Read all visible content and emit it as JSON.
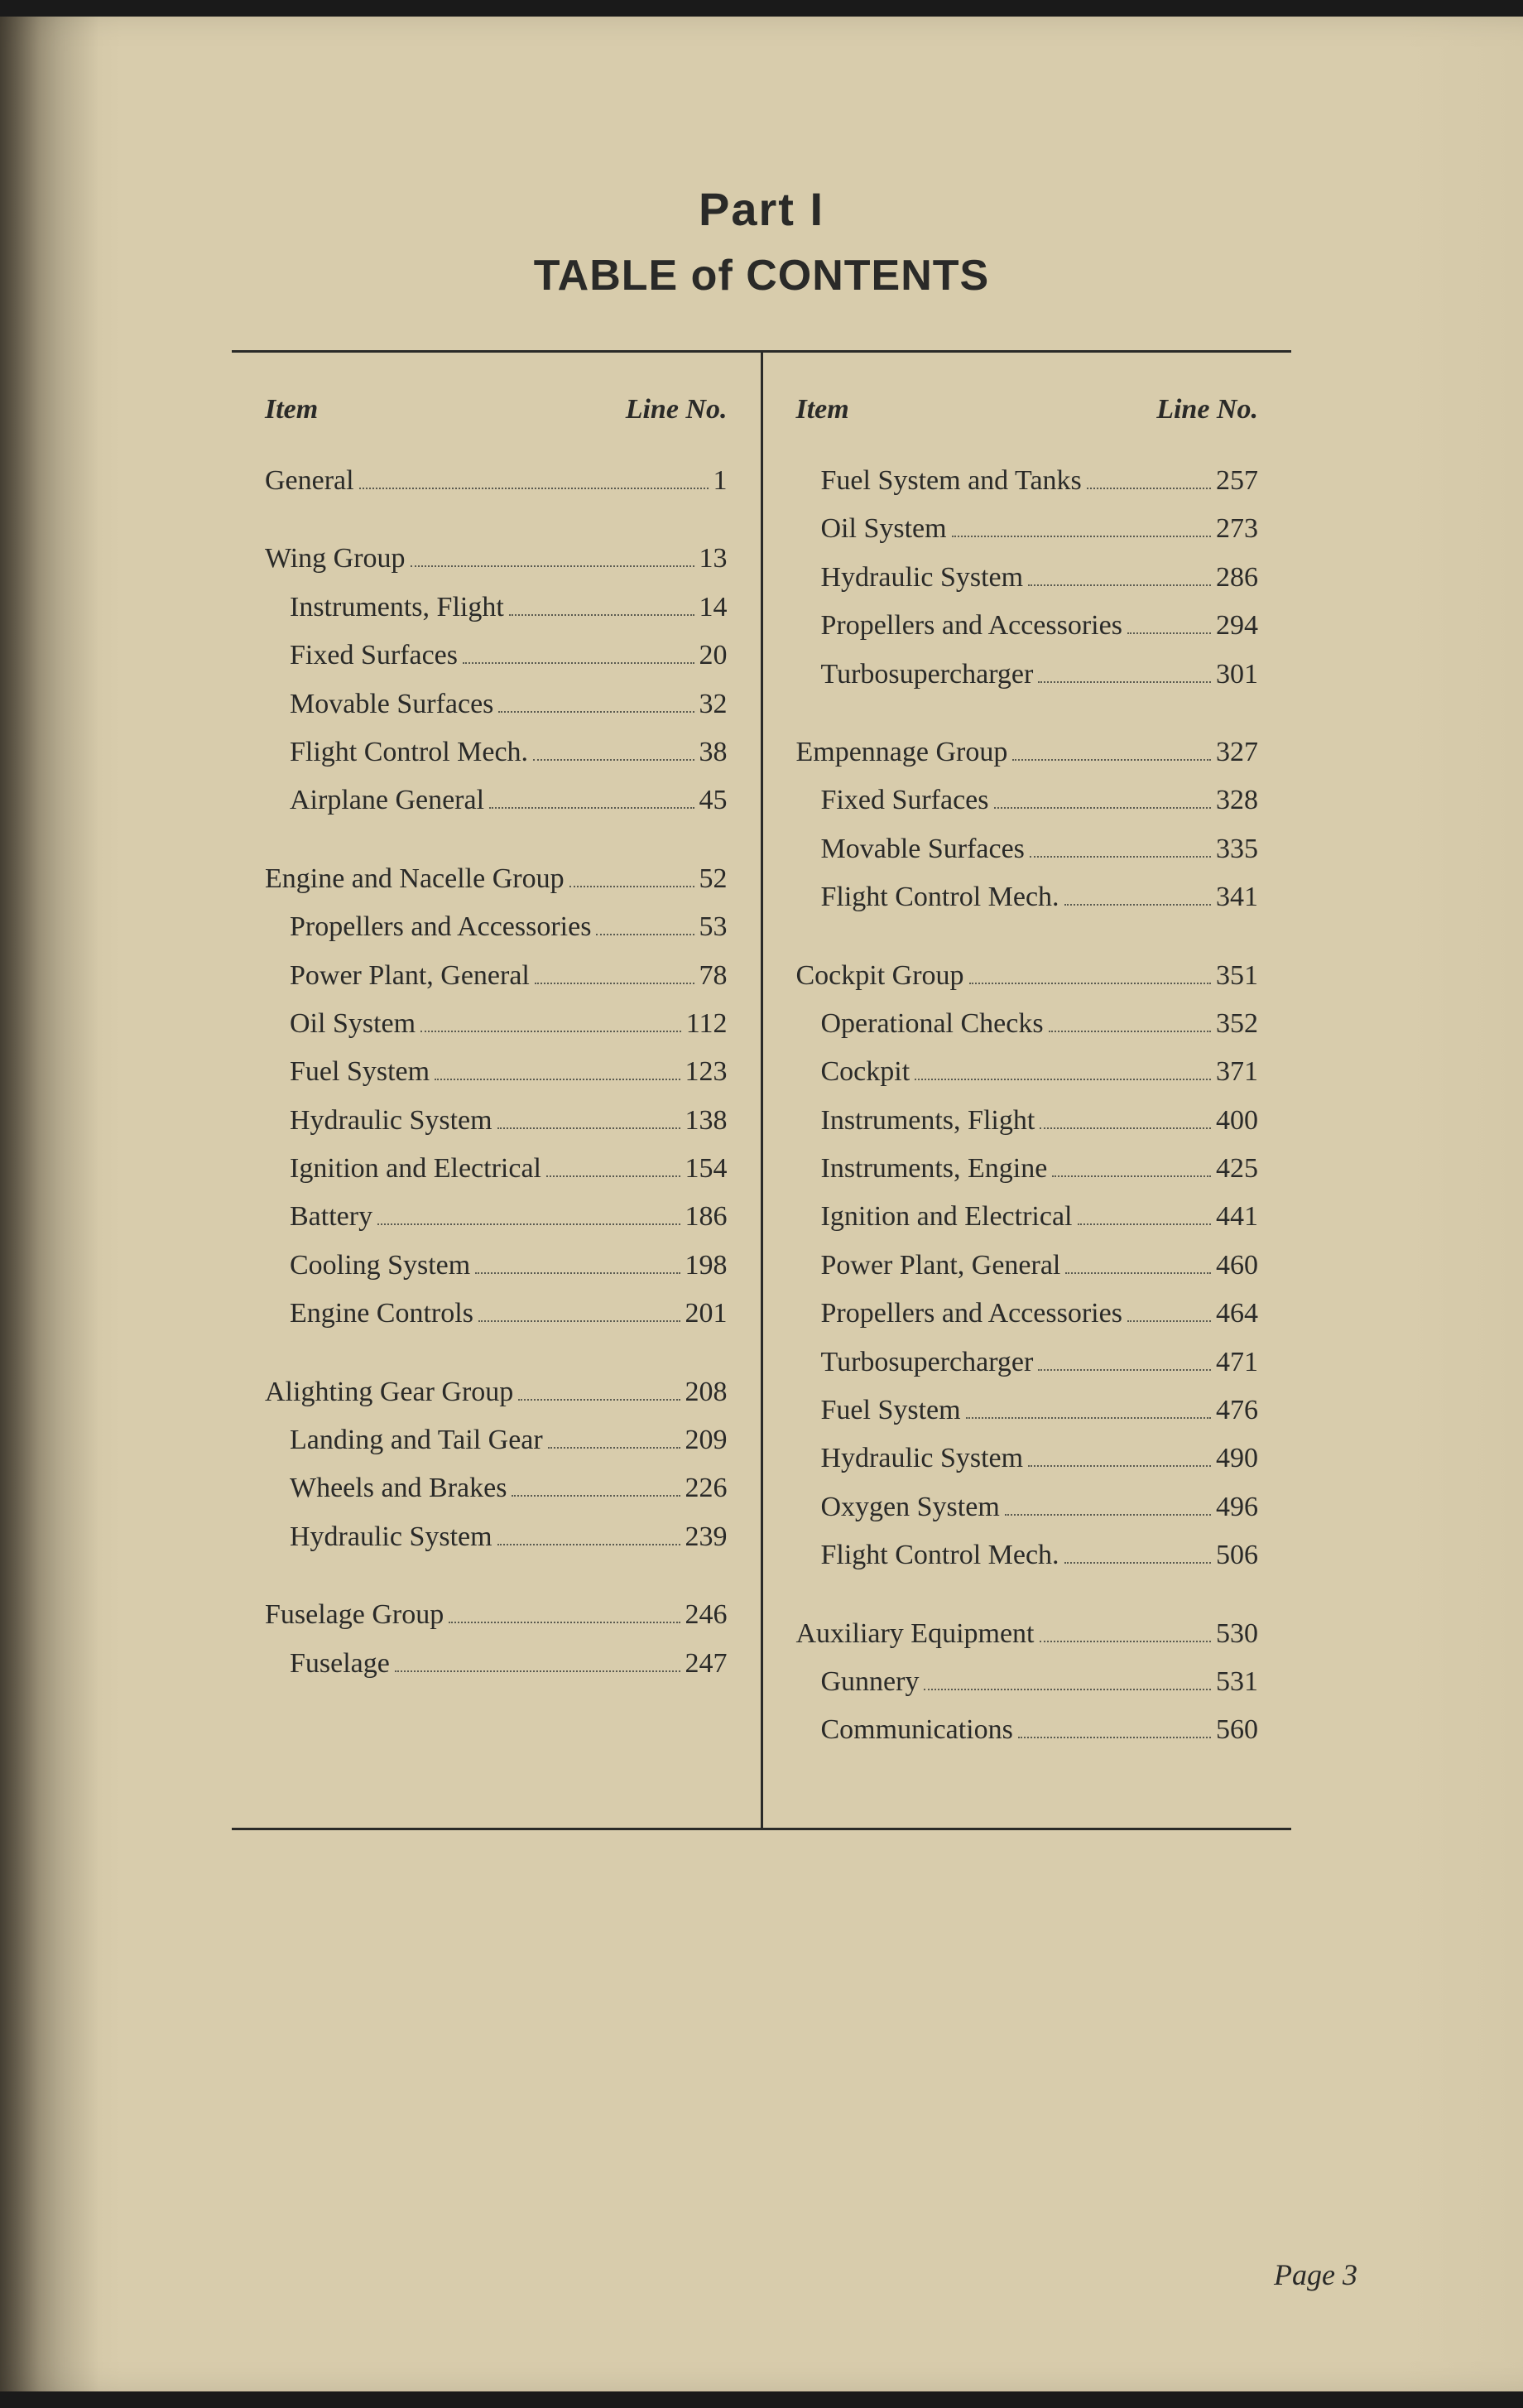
{
  "title": {
    "part": "Part I",
    "toc": "TABLE of CONTENTS"
  },
  "headers": {
    "item": "Item",
    "lineNo": "Line No."
  },
  "leftColumn": [
    {
      "items": [
        {
          "label": "General",
          "num": "1",
          "sub": false
        }
      ]
    },
    {
      "items": [
        {
          "label": "Wing Group",
          "num": "13",
          "sub": false
        },
        {
          "label": "Instruments, Flight",
          "num": "14",
          "sub": true
        },
        {
          "label": "Fixed Surfaces",
          "num": "20",
          "sub": true
        },
        {
          "label": "Movable Surfaces",
          "num": "32",
          "sub": true
        },
        {
          "label": "Flight Control Mech.",
          "num": "38",
          "sub": true
        },
        {
          "label": "Airplane General",
          "num": "45",
          "sub": true
        }
      ]
    },
    {
      "items": [
        {
          "label": "Engine and Nacelle Group",
          "num": "52",
          "sub": false
        },
        {
          "label": "Propellers and Accessories",
          "num": "53",
          "sub": true
        },
        {
          "label": "Power Plant, General",
          "num": "78",
          "sub": true
        },
        {
          "label": "Oil System",
          "num": "112",
          "sub": true
        },
        {
          "label": "Fuel System",
          "num": "123",
          "sub": true
        },
        {
          "label": "Hydraulic System",
          "num": "138",
          "sub": true
        },
        {
          "label": "Ignition and Electrical",
          "num": "154",
          "sub": true
        },
        {
          "label": "Battery",
          "num": "186",
          "sub": true
        },
        {
          "label": "Cooling System",
          "num": "198",
          "sub": true
        },
        {
          "label": "Engine Controls",
          "num": "201",
          "sub": true
        }
      ]
    },
    {
      "items": [
        {
          "label": "Alighting Gear Group",
          "num": "208",
          "sub": false
        },
        {
          "label": "Landing and Tail Gear",
          "num": "209",
          "sub": true
        },
        {
          "label": "Wheels and Brakes",
          "num": "226",
          "sub": true
        },
        {
          "label": "Hydraulic System",
          "num": "239",
          "sub": true
        }
      ]
    },
    {
      "items": [
        {
          "label": "Fuselage Group",
          "num": "246",
          "sub": false
        },
        {
          "label": "Fuselage",
          "num": "247",
          "sub": true
        }
      ]
    }
  ],
  "rightColumn": [
    {
      "items": [
        {
          "label": "Fuel System and Tanks",
          "num": "257",
          "sub": true
        },
        {
          "label": "Oil System",
          "num": "273",
          "sub": true
        },
        {
          "label": "Hydraulic System",
          "num": "286",
          "sub": true
        },
        {
          "label": "Propellers and Accessories",
          "num": "294",
          "sub": true
        },
        {
          "label": "Turbosupercharger",
          "num": "301",
          "sub": true
        }
      ]
    },
    {
      "items": [
        {
          "label": "Empennage Group",
          "num": "327",
          "sub": false
        },
        {
          "label": "Fixed Surfaces",
          "num": "328",
          "sub": true
        },
        {
          "label": "Movable Surfaces",
          "num": "335",
          "sub": true
        },
        {
          "label": "Flight Control Mech.",
          "num": "341",
          "sub": true
        }
      ]
    },
    {
      "items": [
        {
          "label": "Cockpit Group",
          "num": "351",
          "sub": false
        },
        {
          "label": "Operational Checks",
          "num": "352",
          "sub": true
        },
        {
          "label": "Cockpit",
          "num": "371",
          "sub": true
        },
        {
          "label": "Instruments, Flight",
          "num": "400",
          "sub": true
        },
        {
          "label": "Instruments, Engine",
          "num": "425",
          "sub": true
        },
        {
          "label": "Ignition and Electrical",
          "num": "441",
          "sub": true
        },
        {
          "label": "Power Plant, General",
          "num": "460",
          "sub": true
        },
        {
          "label": "Propellers and Accessories",
          "num": "464",
          "sub": true
        },
        {
          "label": "Turbosupercharger",
          "num": "471",
          "sub": true
        },
        {
          "label": "Fuel System",
          "num": "476",
          "sub": true
        },
        {
          "label": "Hydraulic System",
          "num": "490",
          "sub": true
        },
        {
          "label": "Oxygen System",
          "num": "496",
          "sub": true
        },
        {
          "label": "Flight Control Mech.",
          "num": "506",
          "sub": true
        }
      ]
    },
    {
      "items": [
        {
          "label": "Auxiliary Equipment",
          "num": "530",
          "sub": false
        },
        {
          "label": "Gunnery",
          "num": "531",
          "sub": true
        },
        {
          "label": "Communications",
          "num": "560",
          "sub": true
        }
      ]
    }
  ],
  "pageNumber": "Page 3",
  "style": {
    "pageBackground": "#d8ccac",
    "textColor": "#2a2a28",
    "ruleColor": "#2a2a28",
    "titleFontSize": 56,
    "subtitleFontSize": 52,
    "bodyFontSize": 34,
    "headerFontStyle": "italic"
  }
}
